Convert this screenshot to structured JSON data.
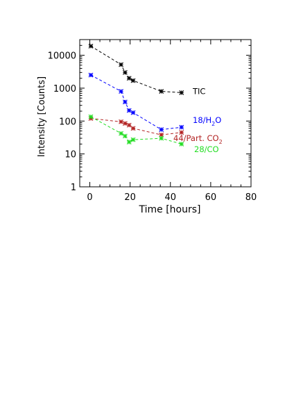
{
  "chart_data": {
    "type": "line",
    "xlabel": "Time [hours]",
    "ylabel": "Intensity [Counts]",
    "xlim": [
      -5,
      80
    ],
    "ylim": [
      1,
      30000
    ],
    "yscale": "log",
    "x_ticks": [
      {
        "value": 0,
        "label": "0"
      },
      {
        "value": 20,
        "label": "20"
      },
      {
        "value": 40,
        "label": "40"
      },
      {
        "value": 60,
        "label": "60"
      },
      {
        "value": 80,
        "label": "80"
      }
    ],
    "y_ticks": [
      {
        "value": 1,
        "label": "1"
      },
      {
        "value": 10,
        "label": "10"
      },
      {
        "value": 100,
        "label": "100"
      },
      {
        "value": 1000,
        "label": "1000"
      },
      {
        "value": 10000,
        "label": "10000"
      }
    ],
    "grid": false,
    "series": [
      {
        "name": "TIC",
        "color": "#000000",
        "x": [
          0.5,
          15.5,
          17.5,
          19.5,
          21.5,
          35.5,
          45.5
        ],
        "y": [
          19000,
          5200,
          3000,
          2000,
          1700,
          800,
          730
        ],
        "label_parts": [
          {
            "text": "TIC",
            "sub": false
          }
        ]
      },
      {
        "name": "18/H2O",
        "color": "#0000ff",
        "x": [
          0.5,
          15.5,
          17.5,
          19.5,
          21.5,
          35.5,
          45.5
        ],
        "y": [
          2500,
          800,
          380,
          210,
          180,
          55,
          65
        ],
        "label_parts": [
          {
            "text": "18/H",
            "sub": false
          },
          {
            "text": "2",
            "sub": true
          },
          {
            "text": "O",
            "sub": false
          }
        ]
      },
      {
        "name": "44/Part. CO2",
        "color": "#b22222",
        "x": [
          0.5,
          15.5,
          17.5,
          19.5,
          21.5,
          35.5,
          45.5
        ],
        "y": [
          120,
          95,
          85,
          75,
          60,
          38,
          45
        ],
        "label_parts": [
          {
            "text": "44/Part. CO",
            "sub": false
          },
          {
            "text": "2",
            "sub": true
          }
        ]
      },
      {
        "name": "28/CO",
        "color": "#22dd22",
        "x": [
          0.5,
          15.5,
          17.5,
          19.5,
          21.5,
          35.5,
          45.5
        ],
        "y": [
          135,
          42,
          35,
          23,
          27,
          30,
          20
        ],
        "label_parts": [
          {
            "text": "28/CO",
            "sub": false
          }
        ]
      }
    ]
  }
}
